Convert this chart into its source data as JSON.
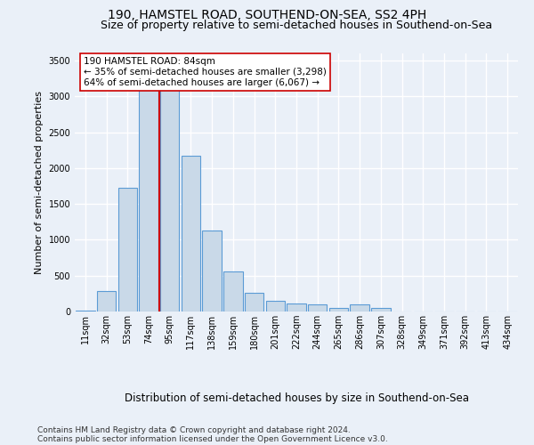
{
  "title": "190, HAMSTEL ROAD, SOUTHEND-ON-SEA, SS2 4PH",
  "subtitle": "Size of property relative to semi-detached houses in Southend-on-Sea",
  "xlabel": "Distribution of semi-detached houses by size in Southend-on-Sea",
  "ylabel": "Number of semi-detached properties",
  "footer1": "Contains HM Land Registry data © Crown copyright and database right 2024.",
  "footer2": "Contains public sector information licensed under the Open Government Licence v3.0.",
  "annotation_line1": "190 HAMSTEL ROAD: 84sqm",
  "annotation_line2": "← 35% of semi-detached houses are smaller (3,298)",
  "annotation_line3": "64% of semi-detached houses are larger (6,067) →",
  "bar_labels": [
    "11sqm",
    "32sqm",
    "53sqm",
    "74sqm",
    "95sqm",
    "117sqm",
    "138sqm",
    "159sqm",
    "180sqm",
    "201sqm",
    "222sqm",
    "244sqm",
    "265sqm",
    "286sqm",
    "307sqm",
    "328sqm",
    "349sqm",
    "371sqm",
    "392sqm",
    "413sqm",
    "434sqm"
  ],
  "bar_values": [
    15,
    290,
    1720,
    3380,
    3380,
    2170,
    1130,
    560,
    260,
    145,
    110,
    100,
    55,
    100,
    55,
    0,
    0,
    0,
    0,
    0,
    0
  ],
  "bar_color": "#c9d9e8",
  "bar_edge_color": "#5b9bd5",
  "vline_color": "#cc0000",
  "vline_pos": 3.5,
  "annotation_box_color": "#ffffff",
  "annotation_box_edge": "#cc0000",
  "ylim": [
    0,
    3600
  ],
  "yticks": [
    0,
    500,
    1000,
    1500,
    2000,
    2500,
    3000,
    3500
  ],
  "bg_color": "#eaf0f8",
  "plot_bg_color": "#eaf0f8",
  "grid_color": "#ffffff",
  "title_fontsize": 10,
  "subtitle_fontsize": 9,
  "ylabel_fontsize": 8,
  "xlabel_fontsize": 8.5,
  "tick_fontsize": 7,
  "annotation_fontsize": 7.5,
  "footer_fontsize": 6.5
}
